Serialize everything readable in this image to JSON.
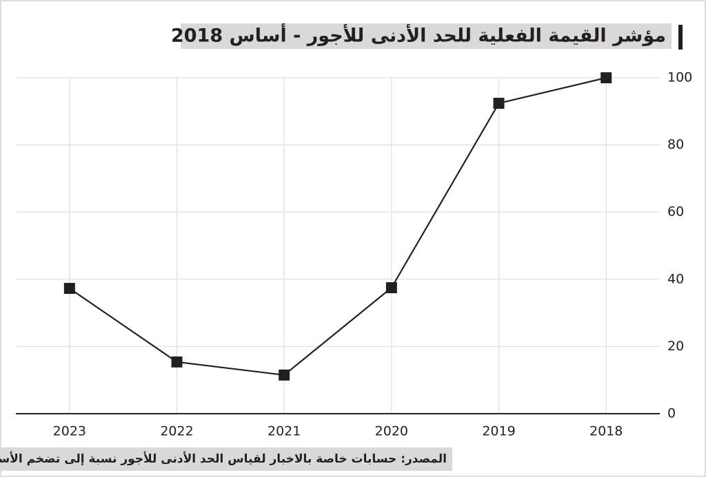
{
  "chart_data": {
    "type": "line",
    "title": "مؤشر القيمة الفعلية للحد الأدنى للأجور - أساس 2018",
    "source": "المصدر: حسابات خاصة بالاخبار لقياس الحد الأدنى للأجور نسبة إلى تضخم الأسعار",
    "categories": [
      "2023",
      "2022",
      "2021",
      "2020",
      "2019",
      "2018"
    ],
    "values": [
      37.3,
      15.4,
      11.5,
      37.5,
      92.4,
      100
    ],
    "color": "#231f20",
    "ylim": [
      0,
      100
    ],
    "yticks": [
      0,
      20,
      40,
      60,
      80,
      100
    ],
    "grid": true
  }
}
